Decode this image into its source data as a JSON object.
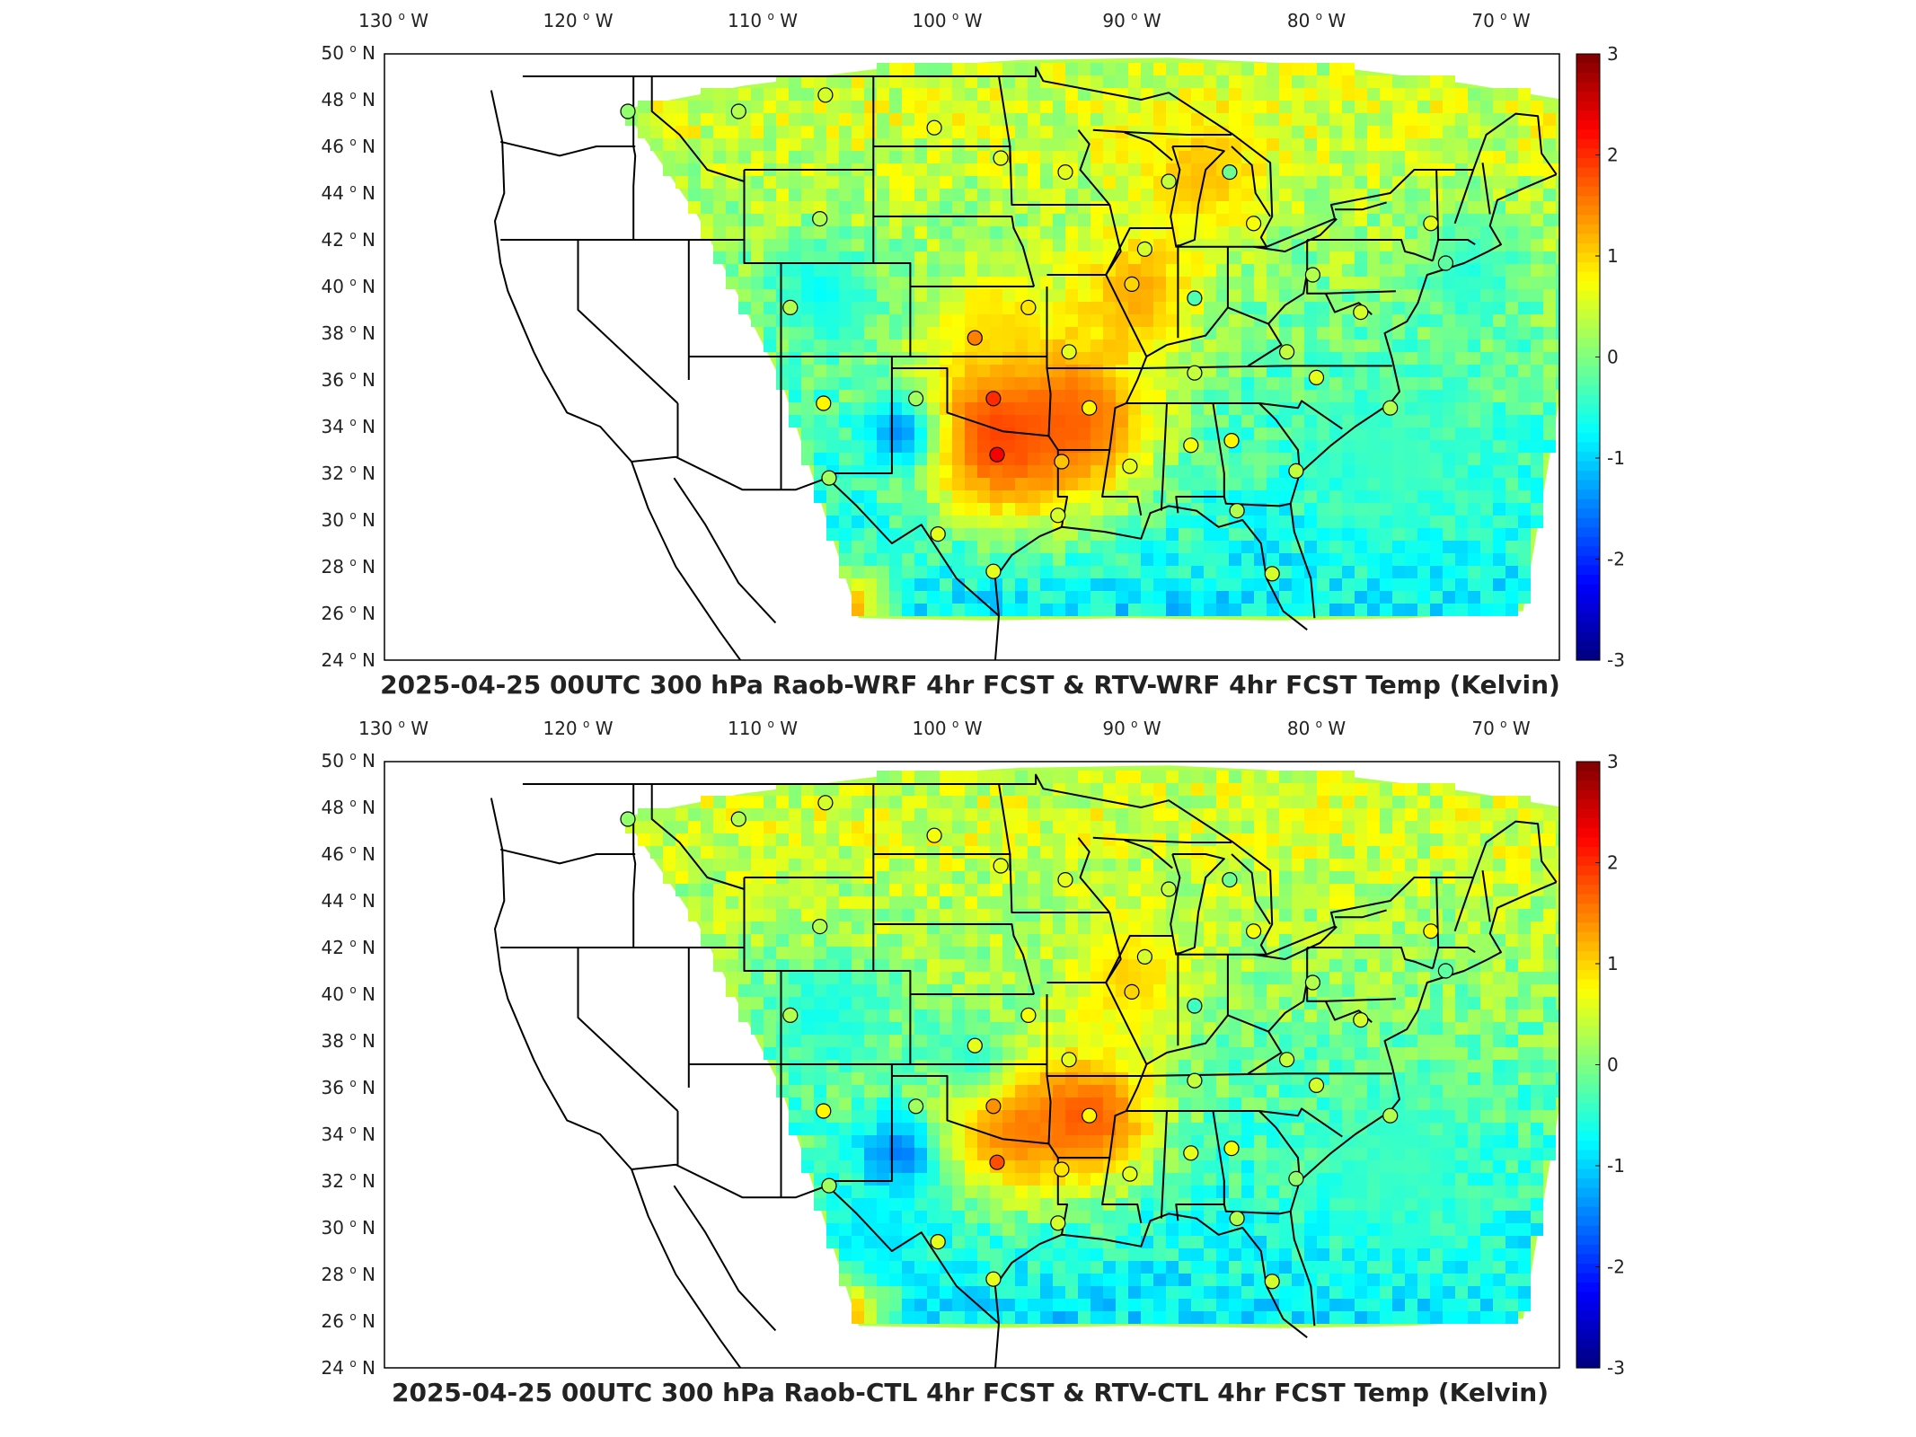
{
  "panels": [
    {
      "title": "2025-04-25 00UTC 300 hPa Raob-WRF 4hr FCST & RTV-WRF 4hr FCST Temp (Kelvin)",
      "hotspots": [
        {
          "lon": -97.5,
          "lat": 34.0,
          "v": 2.2,
          "r": 70
        },
        {
          "lon": -93.5,
          "lat": 34.5,
          "v": 1.8,
          "r": 70
        },
        {
          "lon": -90.0,
          "lat": 40.0,
          "v": 1.4,
          "r": 50
        },
        {
          "lon": -86.5,
          "lat": 45.0,
          "v": 1.2,
          "r": 50
        },
        {
          "lon": -106.0,
          "lat": 26.5,
          "v": 1.6,
          "r": 35
        },
        {
          "lon": -98.0,
          "lat": 38.5,
          "v": 1.0,
          "r": 45
        },
        {
          "lon": -103.0,
          "lat": 34.0,
          "v": -1.6,
          "r": 30
        },
        {
          "lon": -107.0,
          "lat": 40.0,
          "v": -0.8,
          "r": 40
        },
        {
          "lon": -76.0,
          "lat": 33.0,
          "v": -0.4,
          "r": 70
        },
        {
          "lon": -72.0,
          "lat": 41.0,
          "v": -0.6,
          "r": 40
        }
      ],
      "stations": [
        {
          "lon": -117.3,
          "lat": 47.5,
          "v": 0.1
        },
        {
          "lon": -111.3,
          "lat": 47.5,
          "v": 0.3
        },
        {
          "lon": -106.6,
          "lat": 48.2,
          "v": 0.5
        },
        {
          "lon": -100.7,
          "lat": 46.8,
          "v": 0.7
        },
        {
          "lon": -97.1,
          "lat": 45.5,
          "v": 0.6
        },
        {
          "lon": -93.6,
          "lat": 44.9,
          "v": 0.6
        },
        {
          "lon": -88.0,
          "lat": 44.5,
          "v": 0.4
        },
        {
          "lon": -84.7,
          "lat": 44.9,
          "v": -0.1
        },
        {
          "lon": -83.4,
          "lat": 42.7,
          "v": 0.7
        },
        {
          "lon": -89.3,
          "lat": 41.6,
          "v": 0.5
        },
        {
          "lon": -73.8,
          "lat": 42.7,
          "v": 0.6
        },
        {
          "lon": -106.9,
          "lat": 42.9,
          "v": 0.3
        },
        {
          "lon": -108.5,
          "lat": 39.1,
          "v": 0.3
        },
        {
          "lon": -95.6,
          "lat": 39.1,
          "v": 0.9
        },
        {
          "lon": -98.5,
          "lat": 37.8,
          "v": 1.5
        },
        {
          "lon": -90.0,
          "lat": 40.1,
          "v": 1.0
        },
        {
          "lon": -86.6,
          "lat": 39.5,
          "v": -0.3
        },
        {
          "lon": -80.2,
          "lat": 40.5,
          "v": 0.3
        },
        {
          "lon": -77.6,
          "lat": 38.9,
          "v": 0.5
        },
        {
          "lon": -93.4,
          "lat": 37.2,
          "v": 0.6
        },
        {
          "lon": -86.6,
          "lat": 36.3,
          "v": 0.4
        },
        {
          "lon": -80.0,
          "lat": 36.1,
          "v": 0.6
        },
        {
          "lon": -81.6,
          "lat": 37.2,
          "v": 0.4
        },
        {
          "lon": -76.0,
          "lat": 34.8,
          "v": 0.3
        },
        {
          "lon": -106.7,
          "lat": 35.0,
          "v": 0.8
        },
        {
          "lon": -101.7,
          "lat": 35.2,
          "v": 0.2
        },
        {
          "lon": -97.5,
          "lat": 35.2,
          "v": 2.0
        },
        {
          "lon": -97.3,
          "lat": 32.8,
          "v": 2.3
        },
        {
          "lon": -92.3,
          "lat": 34.8,
          "v": 0.8
        },
        {
          "lon": -93.8,
          "lat": 32.5,
          "v": 1.1
        },
        {
          "lon": -90.1,
          "lat": 32.3,
          "v": 0.6
        },
        {
          "lon": -86.8,
          "lat": 33.2,
          "v": 0.7
        },
        {
          "lon": -84.6,
          "lat": 33.4,
          "v": 0.8
        },
        {
          "lon": -81.1,
          "lat": 32.1,
          "v": 0.4
        },
        {
          "lon": -106.4,
          "lat": 31.8,
          "v": 0.2
        },
        {
          "lon": -100.5,
          "lat": 29.4,
          "v": 0.6
        },
        {
          "lon": -94.0,
          "lat": 30.2,
          "v": 0.5
        },
        {
          "lon": -97.5,
          "lat": 27.8,
          "v": 0.6
        },
        {
          "lon": -84.3,
          "lat": 30.4,
          "v": 0.3
        },
        {
          "lon": -82.4,
          "lat": 27.7,
          "v": 0.5
        },
        {
          "lon": -73.0,
          "lat": 41.0,
          "v": -0.2
        }
      ]
    },
    {
      "title": "2025-04-25 00UTC 300 hPa Raob-CTL 4hr FCST & RTV-CTL 4hr FCST Temp (Kelvin)",
      "hotspots": [
        {
          "lon": -97.0,
          "lat": 34.5,
          "v": 1.6,
          "r": 60
        },
        {
          "lon": -92.5,
          "lat": 35.0,
          "v": 1.9,
          "r": 55
        },
        {
          "lon": -90.5,
          "lat": 41.0,
          "v": 1.1,
          "r": 50
        },
        {
          "lon": -106.0,
          "lat": 26.5,
          "v": 1.6,
          "r": 35
        },
        {
          "lon": -103.0,
          "lat": 33.5,
          "v": -1.7,
          "r": 30
        },
        {
          "lon": -99.0,
          "lat": 37.5,
          "v": -0.6,
          "r": 30
        },
        {
          "lon": -107.0,
          "lat": 39.5,
          "v": -0.7,
          "r": 40
        },
        {
          "lon": -76.0,
          "lat": 33.0,
          "v": -0.4,
          "r": 70
        },
        {
          "lon": -104.0,
          "lat": 30.0,
          "v": -0.9,
          "r": 35
        }
      ],
      "stations": [
        {
          "lon": -117.3,
          "lat": 47.5,
          "v": 0.1
        },
        {
          "lon": -111.3,
          "lat": 47.5,
          "v": 0.3
        },
        {
          "lon": -106.6,
          "lat": 48.2,
          "v": 0.5
        },
        {
          "lon": -100.7,
          "lat": 46.8,
          "v": 0.7
        },
        {
          "lon": -97.1,
          "lat": 45.5,
          "v": 0.6
        },
        {
          "lon": -93.6,
          "lat": 44.9,
          "v": 0.6
        },
        {
          "lon": -88.0,
          "lat": 44.5,
          "v": 0.4
        },
        {
          "lon": -84.7,
          "lat": 44.9,
          "v": -0.1
        },
        {
          "lon": -83.4,
          "lat": 42.7,
          "v": 0.7
        },
        {
          "lon": -89.3,
          "lat": 41.6,
          "v": 0.5
        },
        {
          "lon": -73.8,
          "lat": 42.7,
          "v": 0.8
        },
        {
          "lon": -106.9,
          "lat": 42.9,
          "v": 0.3
        },
        {
          "lon": -108.5,
          "lat": 39.1,
          "v": 0.3
        },
        {
          "lon": -95.6,
          "lat": 39.1,
          "v": 0.7
        },
        {
          "lon": -98.5,
          "lat": 37.8,
          "v": 0.6
        },
        {
          "lon": -90.0,
          "lat": 40.1,
          "v": 1.0
        },
        {
          "lon": -86.6,
          "lat": 39.5,
          "v": -0.4
        },
        {
          "lon": -80.2,
          "lat": 40.5,
          "v": 0.3
        },
        {
          "lon": -77.6,
          "lat": 38.9,
          "v": 0.5
        },
        {
          "lon": -93.4,
          "lat": 37.2,
          "v": 0.6
        },
        {
          "lon": -86.6,
          "lat": 36.3,
          "v": 0.4
        },
        {
          "lon": -80.0,
          "lat": 36.1,
          "v": 0.5
        },
        {
          "lon": -81.6,
          "lat": 37.2,
          "v": 0.4
        },
        {
          "lon": -76.0,
          "lat": 34.8,
          "v": 0.3
        },
        {
          "lon": -106.7,
          "lat": 35.0,
          "v": 0.8
        },
        {
          "lon": -101.7,
          "lat": 35.2,
          "v": 0.2
        },
        {
          "lon": -97.5,
          "lat": 35.2,
          "v": 1.4
        },
        {
          "lon": -97.3,
          "lat": 32.8,
          "v": 1.8
        },
        {
          "lon": -92.3,
          "lat": 34.8,
          "v": 0.8
        },
        {
          "lon": -93.8,
          "lat": 32.5,
          "v": 0.9
        },
        {
          "lon": -90.1,
          "lat": 32.3,
          "v": 0.6
        },
        {
          "lon": -86.8,
          "lat": 33.2,
          "v": 0.6
        },
        {
          "lon": -84.6,
          "lat": 33.4,
          "v": 0.7
        },
        {
          "lon": -81.1,
          "lat": 32.1,
          "v": 0.1
        },
        {
          "lon": -106.4,
          "lat": 31.8,
          "v": 0.2
        },
        {
          "lon": -100.5,
          "lat": 29.4,
          "v": 0.6
        },
        {
          "lon": -94.0,
          "lat": 30.2,
          "v": 0.5
        },
        {
          "lon": -97.5,
          "lat": 27.8,
          "v": 0.6
        },
        {
          "lon": -84.3,
          "lat": 30.4,
          "v": 0.3
        },
        {
          "lon": -82.4,
          "lat": 27.7,
          "v": 0.5
        },
        {
          "lon": -73.0,
          "lat": 41.0,
          "v": -0.2
        }
      ]
    }
  ],
  "lon_ticks": [
    -130,
    -120,
    -110,
    -100,
    -90,
    -80,
    -70
  ],
  "lat_ticks": [
    24,
    26,
    28,
    30,
    32,
    34,
    36,
    38,
    40,
    42,
    44,
    46,
    48,
    50
  ],
  "colorbar": {
    "ticks": [
      3,
      2,
      1,
      0,
      -1,
      -2,
      -3
    ],
    "range": [
      -3,
      3
    ]
  },
  "colors": {
    "coast": "#000000",
    "frame": "#000000",
    "background": "#ffffff"
  }
}
